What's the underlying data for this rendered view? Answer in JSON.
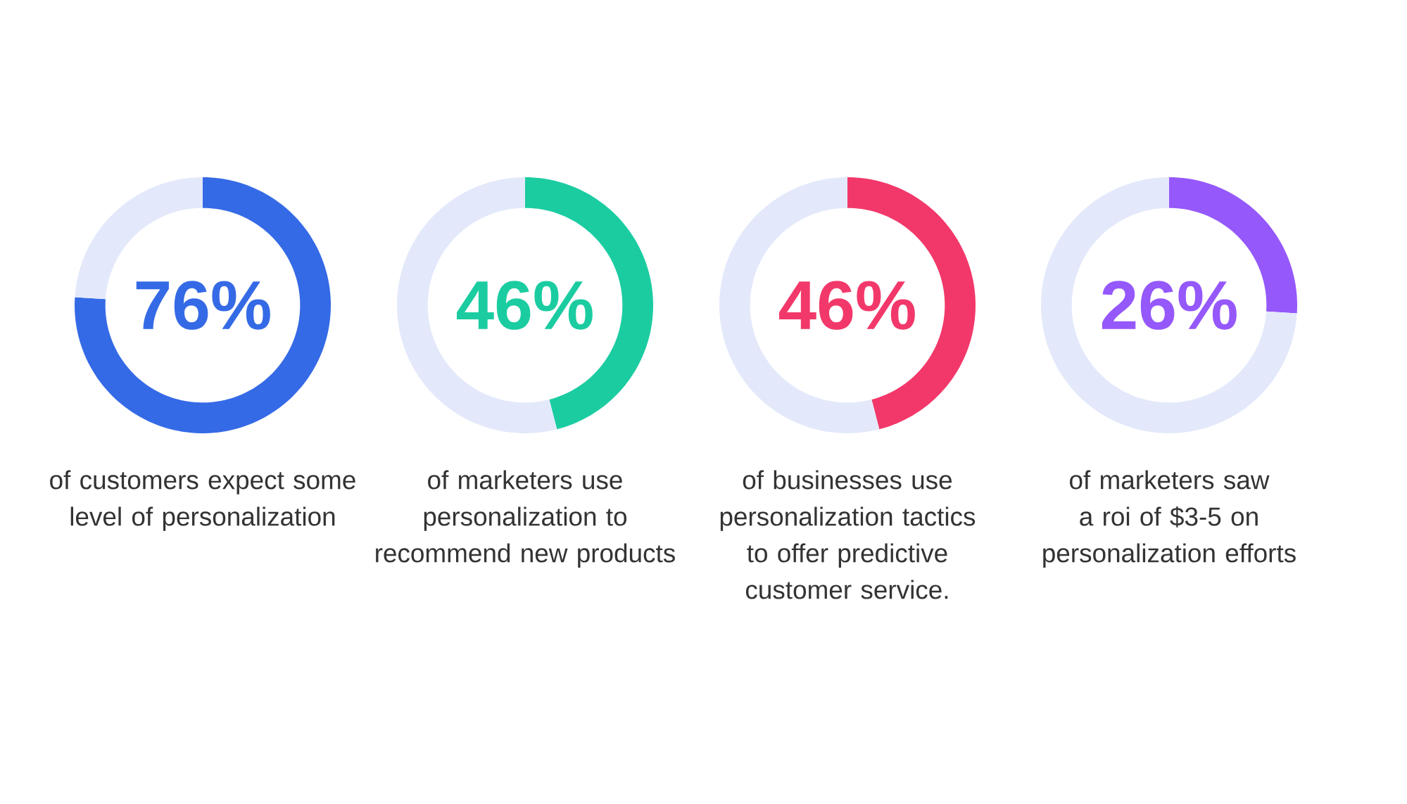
{
  "chart_data": [
    {
      "type": "donut",
      "categories": [
        null,
        null
      ],
      "values": [
        76,
        24
      ],
      "colors": [
        "#356ae6",
        "#e3e9fb"
      ],
      "annotations": [
        "76%",
        "of customers expect some level of personalization"
      ]
    },
    {
      "type": "donut",
      "categories": [
        null,
        null
      ],
      "values": [
        46,
        54
      ],
      "colors": [
        "#1bcca1",
        "#e3e9fb"
      ],
      "annotations": [
        "46%",
        "of marketers use personalization to recommend new products"
      ]
    },
    {
      "type": "donut",
      "categories": [
        null,
        null
      ],
      "values": [
        46,
        54
      ],
      "colors": [
        "#f2386a",
        "#e3e9fb"
      ],
      "annotations": [
        "46%",
        "of businesses use personalization tactics to offer predictive customer service."
      ]
    },
    {
      "type": "donut",
      "categories": [
        null,
        null
      ],
      "values": [
        26,
        74
      ],
      "colors": [
        "#9558fa",
        "#e3e9fb"
      ],
      "annotations": [
        "26%",
        "of marketers saw a roi of $3-5 on personalization efforts"
      ]
    }
  ]
}
